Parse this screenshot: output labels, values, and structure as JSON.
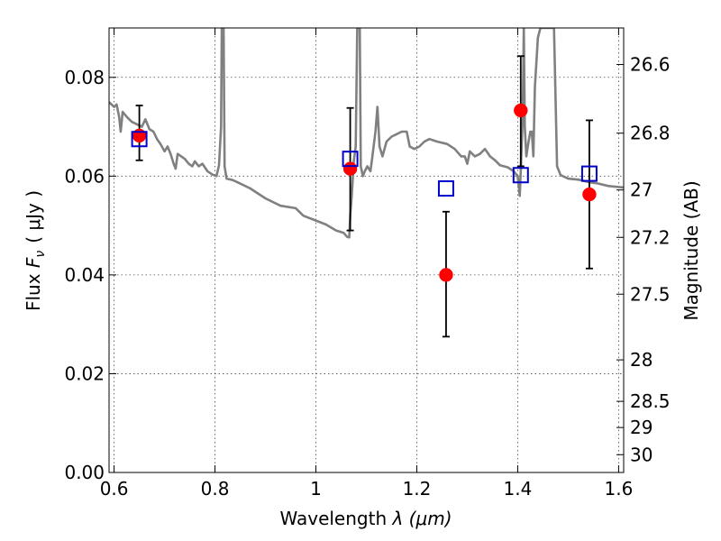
{
  "chart_data": {
    "type": "scatter",
    "title": "",
    "xlabel_text": "Wavelength ",
    "xlabel_math": "λ (μm)",
    "ylabel_text": "Flux ",
    "ylabel_math": "F",
    "ylabel_sub": "ν",
    "ylabel_units": "( μJy )",
    "y2label": "Magnitude (AB)",
    "xlim": [
      0.59,
      1.61
    ],
    "ylim": [
      0.0,
      0.09
    ],
    "grid": true,
    "x_ticks": [
      0.6,
      0.8,
      1.0,
      1.2,
      1.4,
      1.6
    ],
    "x_tick_labels": [
      "0.6",
      "0.8",
      "1",
      "1.2",
      "1.4",
      "1.6"
    ],
    "y_ticks": [
      0.0,
      0.02,
      0.04,
      0.06,
      0.08
    ],
    "y_tick_labels": [
      "0.00",
      "0.02",
      "0.04",
      "0.06",
      "0.08"
    ],
    "y2_ticks": [
      {
        "label": "26.6",
        "flux": 0.0826
      },
      {
        "label": "26.8",
        "flux": 0.0687
      },
      {
        "label": "27",
        "flux": 0.0572
      },
      {
        "label": "27.2",
        "flux": 0.0476
      },
      {
        "label": "27.5",
        "flux": 0.0361
      },
      {
        "label": "28",
        "flux": 0.0228
      },
      {
        "label": "28.5",
        "flux": 0.0144
      },
      {
        "label": "29",
        "flux": 0.0091
      },
      {
        "label": "30",
        "flux": 0.0036
      }
    ],
    "model_spectrum": {
      "color": "#808080",
      "points": [
        [
          0.59,
          0.075
        ],
        [
          0.6,
          0.074
        ],
        [
          0.605,
          0.0745
        ],
        [
          0.61,
          0.072
        ],
        [
          0.613,
          0.069
        ],
        [
          0.617,
          0.073
        ],
        [
          0.625,
          0.072
        ],
        [
          0.635,
          0.071
        ],
        [
          0.645,
          0.0705
        ],
        [
          0.655,
          0.07
        ],
        [
          0.662,
          0.0715
        ],
        [
          0.67,
          0.0695
        ],
        [
          0.678,
          0.069
        ],
        [
          0.685,
          0.0675
        ],
        [
          0.692,
          0.0665
        ],
        [
          0.7,
          0.065
        ],
        [
          0.706,
          0.066
        ],
        [
          0.712,
          0.0645
        ],
        [
          0.718,
          0.0625
        ],
        [
          0.722,
          0.0615
        ],
        [
          0.726,
          0.0645
        ],
        [
          0.733,
          0.064
        ],
        [
          0.74,
          0.0635
        ],
        [
          0.748,
          0.0625
        ],
        [
          0.755,
          0.062
        ],
        [
          0.76,
          0.063
        ],
        [
          0.768,
          0.062
        ],
        [
          0.775,
          0.0625
        ],
        [
          0.785,
          0.061
        ],
        [
          0.795,
          0.0603
        ],
        [
          0.803,
          0.06
        ],
        [
          0.808,
          0.0622
        ],
        [
          0.812,
          0.07
        ],
        [
          0.8135,
          0.09
        ],
        [
          0.817,
          0.09
        ],
        [
          0.819,
          0.062
        ],
        [
          0.823,
          0.0595
        ],
        [
          0.835,
          0.0592
        ],
        [
          0.85,
          0.0585
        ],
        [
          0.87,
          0.0575
        ],
        [
          0.9,
          0.0555
        ],
        [
          0.93,
          0.054
        ],
        [
          0.96,
          0.0535
        ],
        [
          0.975,
          0.052
        ],
        [
          1.0,
          0.051
        ],
        [
          1.02,
          0.0502
        ],
        [
          1.04,
          0.049
        ],
        [
          1.055,
          0.0485
        ],
        [
          1.062,
          0.0477
        ],
        [
          1.066,
          0.0476
        ],
        [
          1.068,
          0.052
        ],
        [
          1.071,
          0.056
        ],
        [
          1.075,
          0.063
        ],
        [
          1.079,
          0.066
        ],
        [
          1.082,
          0.09
        ],
        [
          1.087,
          0.09
        ],
        [
          1.089,
          0.062
        ],
        [
          1.093,
          0.06
        ],
        [
          1.097,
          0.061
        ],
        [
          1.102,
          0.062
        ],
        [
          1.108,
          0.061
        ],
        [
          1.112,
          0.064
        ],
        [
          1.118,
          0.069
        ],
        [
          1.122,
          0.074
        ],
        [
          1.126,
          0.066
        ],
        [
          1.132,
          0.064
        ],
        [
          1.14,
          0.067
        ],
        [
          1.15,
          0.068
        ],
        [
          1.16,
          0.0685
        ],
        [
          1.17,
          0.069
        ],
        [
          1.18,
          0.069
        ],
        [
          1.186,
          0.066
        ],
        [
          1.195,
          0.0655
        ],
        [
          1.205,
          0.066
        ],
        [
          1.215,
          0.067
        ],
        [
          1.225,
          0.0675
        ],
        [
          1.24,
          0.067
        ],
        [
          1.26,
          0.0665
        ],
        [
          1.275,
          0.0655
        ],
        [
          1.288,
          0.064
        ],
        [
          1.295,
          0.064
        ],
        [
          1.3,
          0.0625
        ],
        [
          1.305,
          0.065
        ],
        [
          1.315,
          0.064
        ],
        [
          1.325,
          0.0645
        ],
        [
          1.335,
          0.0655
        ],
        [
          1.345,
          0.064
        ],
        [
          1.355,
          0.0632
        ],
        [
          1.365,
          0.0622
        ],
        [
          1.38,
          0.0618
        ],
        [
          1.392,
          0.061
        ],
        [
          1.4,
          0.06
        ],
        [
          1.404,
          0.056
        ],
        [
          1.406,
          0.061
        ],
        [
          1.41,
          0.072
        ],
        [
          1.412,
          0.09
        ],
        [
          1.414,
          0.07
        ],
        [
          1.417,
          0.064
        ],
        [
          1.42,
          0.066
        ],
        [
          1.425,
          0.069
        ],
        [
          1.428,
          0.069
        ],
        [
          1.431,
          0.064
        ],
        [
          1.434,
          0.078
        ],
        [
          1.44,
          0.088
        ],
        [
          1.445,
          0.09
        ],
        [
          1.472,
          0.09
        ],
        [
          1.478,
          0.062
        ],
        [
          1.485,
          0.0602
        ],
        [
          1.5,
          0.0595
        ],
        [
          1.52,
          0.0593
        ],
        [
          1.54,
          0.0588
        ],
        [
          1.56,
          0.0585
        ],
        [
          1.58,
          0.058
        ],
        [
          1.6,
          0.0578
        ],
        [
          1.61,
          0.0577
        ]
      ]
    },
    "observed": {
      "name": "",
      "color": "#ff0000",
      "points": [
        {
          "x": 0.65,
          "y": 0.0682,
          "err_lo": 0.0632,
          "err_hi": 0.0743
        },
        {
          "x": 1.068,
          "y": 0.0615,
          "err_lo": 0.049,
          "err_hi": 0.0738
        },
        {
          "x": 1.258,
          "y": 0.04,
          "err_lo": 0.0275,
          "err_hi": 0.0528
        },
        {
          "x": 1.406,
          "y": 0.0733,
          "err_lo": 0.062,
          "err_hi": 0.0843
        },
        {
          "x": 1.542,
          "y": 0.0563,
          "err_lo": 0.0413,
          "err_hi": 0.0713
        }
      ]
    },
    "model_photometry": {
      "name": "",
      "color": "#0000cc",
      "points": [
        {
          "x": 0.65,
          "y": 0.0675
        },
        {
          "x": 1.068,
          "y": 0.0635
        },
        {
          "x": 1.258,
          "y": 0.0575
        },
        {
          "x": 1.406,
          "y": 0.0602
        },
        {
          "x": 1.542,
          "y": 0.0605
        }
      ]
    }
  }
}
